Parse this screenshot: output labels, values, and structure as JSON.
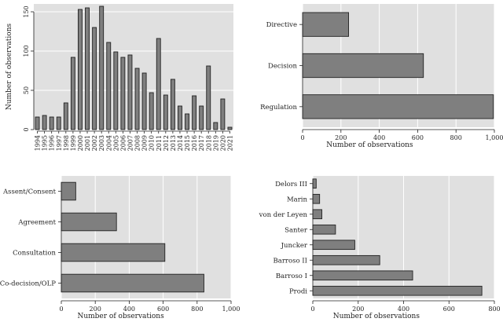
{
  "chart_data": [
    {
      "id": "year",
      "type": "bar",
      "orientation": "vertical",
      "ylabel": "Number of observations",
      "xlabel": "",
      "ylim": [
        0,
        160
      ],
      "yticks": [
        0,
        50,
        100,
        150
      ],
      "grid": true,
      "categories": [
        "1994",
        "1995",
        "1996",
        "1997",
        "1998",
        "1999",
        "2000",
        "2001",
        "2002",
        "2003",
        "2004",
        "2005",
        "2006",
        "2007",
        "2008",
        "2009",
        "2010",
        "2011",
        "2012",
        "2013",
        "2014",
        "2015",
        "2016",
        "2017",
        "2018",
        "2019",
        "2020",
        "2021"
      ],
      "values": [
        16,
        18,
        16,
        16,
        34,
        92,
        153,
        155,
        130,
        157,
        111,
        99,
        92,
        95,
        78,
        72,
        47,
        116,
        44,
        64,
        30,
        20,
        43,
        30,
        81,
        9,
        39,
        3
      ]
    },
    {
      "id": "instrument",
      "type": "bar",
      "orientation": "horizontal",
      "xlabel": "Number of observations",
      "ylabel": "",
      "xlim": [
        0,
        1000
      ],
      "xticks": [
        0,
        200,
        400,
        600,
        800,
        1000
      ],
      "xtick_labels": [
        "0",
        "200",
        "400",
        "600",
        "800",
        "1,000"
      ],
      "grid": true,
      "categories": [
        "Directive",
        "Decision",
        "Regulation"
      ],
      "values": [
        240,
        630,
        995
      ]
    },
    {
      "id": "procedure",
      "type": "bar",
      "orientation": "horizontal",
      "xlabel": "Number of observations",
      "ylabel": "",
      "xlim": [
        0,
        1000
      ],
      "xticks": [
        0,
        200,
        400,
        600,
        800,
        1000
      ],
      "xtick_labels": [
        "0",
        "200",
        "400",
        "600",
        "800",
        "1,000"
      ],
      "grid": true,
      "categories": [
        "Assent/Consent",
        "Agreement",
        "Consultation",
        "Co-decision/OLP"
      ],
      "values": [
        85,
        325,
        610,
        840
      ]
    },
    {
      "id": "commission",
      "type": "bar",
      "orientation": "horizontal",
      "xlabel": "Number of observations",
      "ylabel": "",
      "xlim": [
        0,
        800
      ],
      "xticks": [
        0,
        200,
        400,
        600,
        800
      ],
      "xtick_labels": [
        "0",
        "200",
        "400",
        "600",
        "800"
      ],
      "grid": true,
      "categories": [
        "Delors III",
        "Marin",
        "von der Leyen",
        "Santer",
        "Juncker",
        "Barroso II",
        "Barroso I",
        "Prodi"
      ],
      "values": [
        15,
        30,
        40,
        100,
        185,
        295,
        440,
        745
      ]
    }
  ]
}
